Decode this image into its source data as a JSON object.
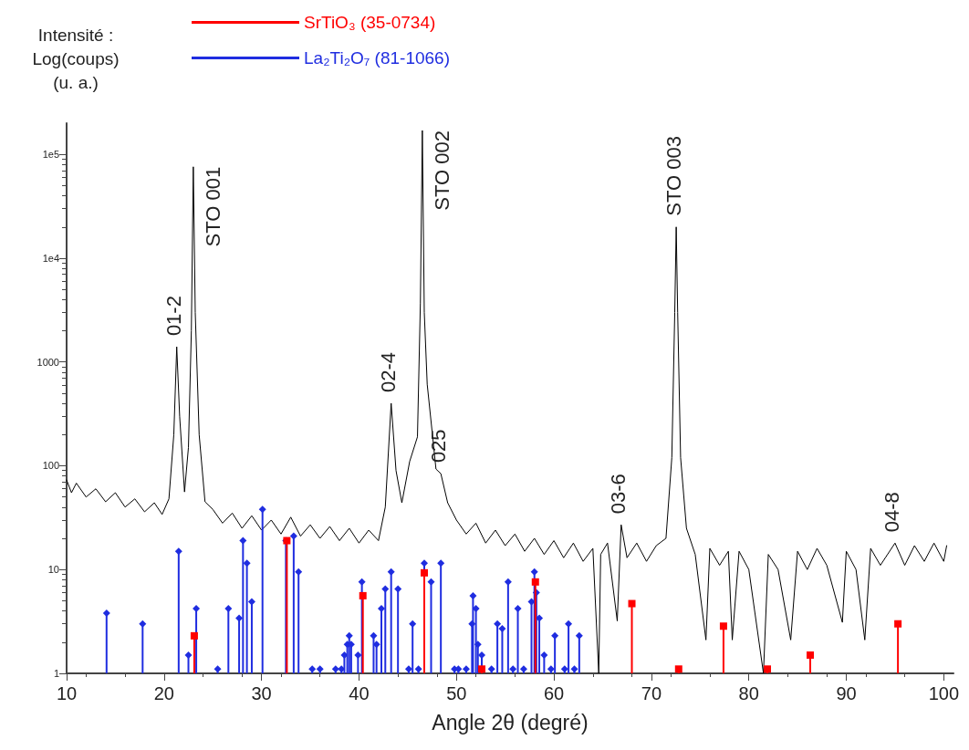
{
  "chart_data": {
    "type": "line",
    "xlabel": "Angle 2θ (degré)",
    "ylabel": "Intensité :\nLog(coups)\n(u. a.)",
    "xlim": [
      10,
      101
    ],
    "xticks": [
      10,
      20,
      30,
      40,
      50,
      60,
      70,
      80,
      90,
      100
    ],
    "ylim": [
      1,
      200000
    ],
    "yticks": [
      1,
      10,
      100,
      1000,
      {
        "value": 10000,
        "label": "1e4"
      },
      {
        "value": 100000,
        "label": "1e5"
      }
    ],
    "log": true,
    "grid": false,
    "legend": "top",
    "series": [
      {
        "type": "line",
        "color": "#000000",
        "marker": "none",
        "line_style": "solid",
        "x": [
          10,
          10.5,
          11,
          12,
          13,
          14,
          15,
          16,
          17,
          18,
          19,
          19.8,
          20.5,
          21.0,
          21.3,
          21.6,
          22.1,
          22.5,
          22.8,
          23.0,
          23.2,
          23.6,
          24.2,
          25,
          26,
          27,
          28,
          29,
          30,
          31,
          32,
          33,
          34,
          35,
          36,
          37,
          38,
          39,
          40,
          41,
          42,
          42.7,
          43.3,
          43.8,
          44.4,
          45.2,
          46.0,
          46.3,
          46.5,
          46.7,
          47.0,
          47.9,
          48.4,
          49.1,
          50,
          51,
          52,
          53,
          54,
          55,
          56,
          57,
          58,
          59,
          60,
          61,
          62,
          63,
          64,
          64.6,
          64.8,
          65.5,
          66.5,
          66.9,
          67.5,
          68.5,
          69.5,
          70.5,
          71.5,
          72.1,
          72.4,
          72.55,
          72.7,
          73.0,
          73.6,
          74.5,
          75.6,
          76,
          77,
          77.9,
          78.3,
          79,
          80,
          81.5,
          82,
          83,
          84.3,
          85,
          86,
          87,
          88,
          89.6,
          90,
          91,
          91.9,
          92.5,
          93.5,
          95,
          96,
          97,
          98,
          99,
          100,
          100.3
        ],
        "values": [
          73,
          55,
          68,
          50,
          60,
          45,
          55,
          40,
          48,
          36,
          44,
          34,
          48,
          200,
          1400,
          300,
          56,
          150,
          2000,
          76000,
          3000,
          200,
          45,
          38,
          28,
          35,
          25,
          33,
          24,
          30,
          22,
          32,
          21,
          27,
          20,
          26,
          19,
          25,
          18,
          24,
          19,
          40,
          400,
          90,
          44,
          110,
          190,
          3700,
          170000,
          3000,
          610,
          93,
          84,
          44,
          30,
          22,
          28,
          18,
          24,
          17,
          22,
          15,
          20,
          14,
          19,
          13,
          18,
          12,
          16,
          1,
          14,
          18,
          3.2,
          27,
          13,
          18,
          12,
          17,
          20,
          120,
          3000,
          20000,
          3000,
          120,
          25,
          14,
          2.1,
          16,
          11,
          15,
          2.1,
          15,
          10,
          1,
          14,
          10,
          2.1,
          15,
          10,
          16,
          11,
          3.1,
          15,
          10,
          2.1,
          16,
          11,
          18,
          11,
          17,
          12,
          18,
          12,
          17
        ]
      },
      {
        "type": "lollipop",
        "name": "SrTiO₃ (35-0734)",
        "color": "#ff0000",
        "marker": "square",
        "x": [
          23.1,
          32.6,
          40.4,
          46.7,
          52.6,
          58.1,
          68.0,
          72.8,
          77.4,
          81.9,
          86.3,
          95.3
        ],
        "values": [
          2.3,
          19,
          5.6,
          9.3,
          1.1,
          7.6,
          4.7,
          1.1,
          2.85,
          1.1,
          1.5,
          3.0
        ]
      },
      {
        "type": "lollipop",
        "name": "La₂Ti₂O₇ (81-1066)",
        "color": "#1f2de0",
        "marker": "diamond",
        "x": [
          14.1,
          17.8,
          21.5,
          22.5,
          23.3,
          25.5,
          26.6,
          27.7,
          28.1,
          28.5,
          29.0,
          30.1,
          32.5,
          33.3,
          33.8,
          35.2,
          36.0,
          37.6,
          38.2,
          38.5,
          38.8,
          39.0,
          39.2,
          39.9,
          40.3,
          41.5,
          41.8,
          42.3,
          42.7,
          43.3,
          44.0,
          45.1,
          45.5,
          46.1,
          46.7,
          47.4,
          48.4,
          49.8,
          50.2,
          51.0,
          51.6,
          51.7,
          52.0,
          52.2,
          52.6,
          53.6,
          54.2,
          54.7,
          55.3,
          55.8,
          56.3,
          56.9,
          57.7,
          58.0,
          58.2,
          58.5,
          59.0,
          59.7,
          60.1,
          61.1,
          61.5,
          62.1,
          62.6
        ],
        "values": [
          3.8,
          3.0,
          15,
          1.5,
          4.2,
          1.1,
          4.2,
          3.4,
          19,
          11.5,
          4.9,
          38,
          19,
          21,
          9.5,
          1.1,
          1.1,
          1.1,
          1.1,
          1.5,
          1.9,
          2.3,
          1.9,
          1.5,
          7.6,
          2.3,
          1.9,
          4.2,
          6.5,
          9.5,
          6.5,
          1.1,
          3.0,
          1.1,
          11.5,
          7.6,
          11.5,
          1.1,
          1.1,
          1.1,
          3.0,
          5.6,
          4.2,
          1.9,
          1.5,
          1.1,
          3.0,
          2.7,
          7.6,
          1.1,
          4.2,
          1.1,
          4.9,
          9.5,
          6.0,
          3.4,
          1.5,
          1.1,
          2.3,
          1.1,
          3.0,
          1.1,
          2.3
        ]
      }
    ],
    "annotations": [
      {
        "text": "01-2",
        "x": 21.3,
        "y": 1400
      },
      {
        "text": "STO 001",
        "x": 23.0,
        "y": 76000
      },
      {
        "text": "02-4",
        "x": 43.3,
        "y": 400
      },
      {
        "text": "STO 002",
        "x": 46.5,
        "y": 170000
      },
      {
        "text": "025",
        "x": 48.4,
        "y": 84
      },
      {
        "text": "03-6",
        "x": 66.9,
        "y": 27
      },
      {
        "text": "STO 003",
        "x": 72.55,
        "y": 20000
      },
      {
        "text": "04-8",
        "x": 95,
        "y": 18
      }
    ]
  }
}
